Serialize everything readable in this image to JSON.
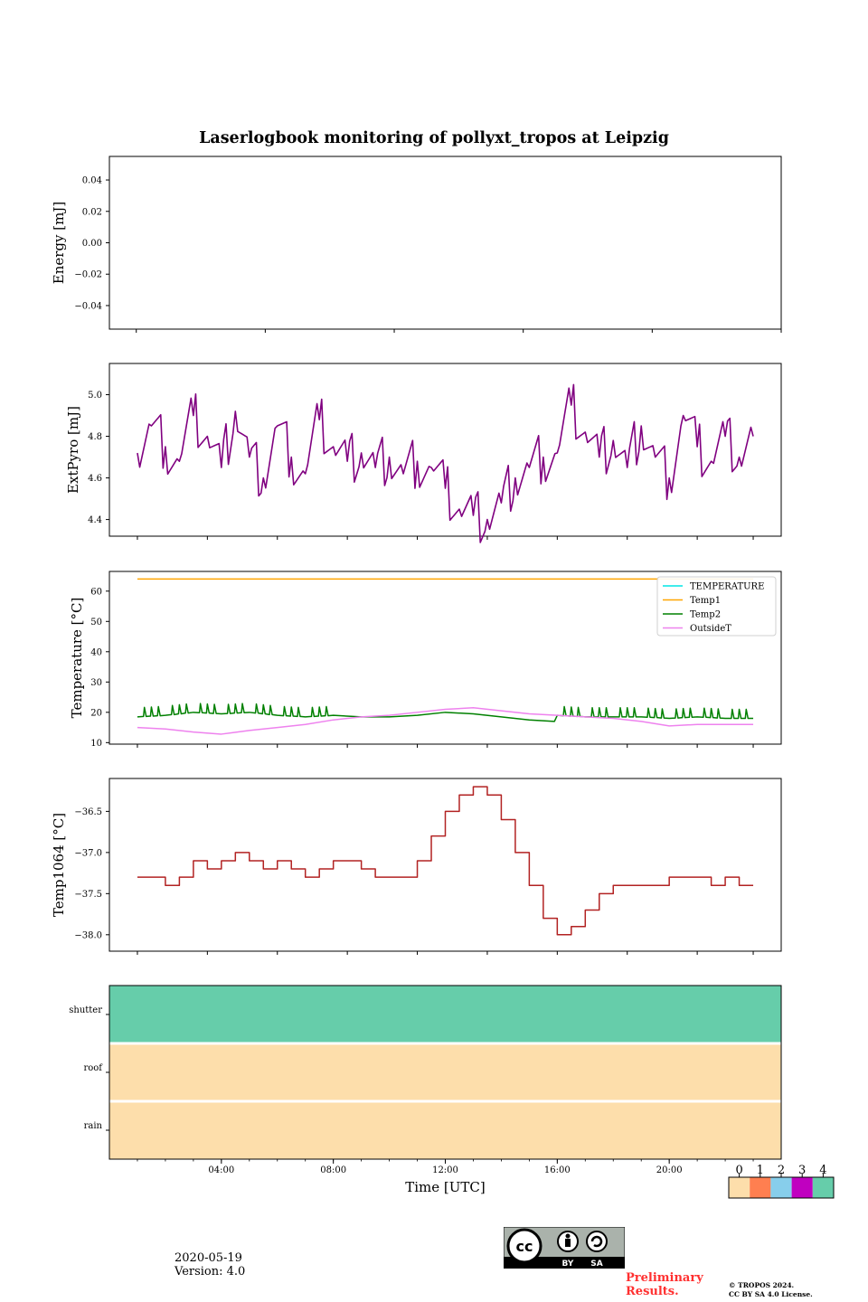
{
  "title": "Laserlogbook monitoring of pollyxt_tropos at Leipzig",
  "footer": {
    "date": "2020-05-19",
    "version": "Version: 4.0",
    "preliminary_line1": "Preliminary",
    "preliminary_line2": "Results.",
    "copyright_line1": "© TROPOS 2024.",
    "copyright_line2": "CC BY SA 4.0 License.",
    "cc_badge": {
      "cc": "cc",
      "by": "BY",
      "sa": "SA"
    }
  },
  "chart_data": [
    {
      "type": "line",
      "name": "energy",
      "ylabel": "Energy [mJ]",
      "ylim": [
        -0.055,
        0.055
      ],
      "yticks": [
        0.04,
        0.02,
        0.0,
        -0.02,
        -0.04
      ],
      "ytick_labels": [
        "0.04",
        "0.02",
        "0.00",
        "−0.02",
        "−0.04"
      ],
      "series": []
    },
    {
      "type": "line",
      "name": "extpyro",
      "ylabel": "ExtPyro [mJ]",
      "ylim": [
        4.32,
        5.15
      ],
      "yticks": [
        5.0,
        4.8,
        4.6,
        4.4
      ],
      "ytick_labels": [
        "5.0",
        "4.8",
        "4.6",
        "4.4"
      ],
      "series": [
        {
          "name": "ExtPyro",
          "color": "#800080",
          "x": [
            1.0,
            1.5,
            2.0,
            2.5,
            3.0,
            3.5,
            4.0,
            4.5,
            5.0,
            5.5,
            6.0,
            6.5,
            7.0,
            7.5,
            8.0,
            8.5,
            9.0,
            9.5,
            10.0,
            10.5,
            11.0,
            11.5,
            12.0,
            12.5,
            13.0,
            13.5,
            14.0,
            14.5,
            15.0,
            15.5,
            16.0,
            16.5,
            17.0,
            17.5,
            18.0,
            18.5,
            19.0,
            19.5,
            20.0,
            20.5,
            21.0,
            21.5,
            22.0,
            22.5,
            23.0
          ],
          "y": [
            4.72,
            4.85,
            4.75,
            4.68,
            4.9,
            4.8,
            4.65,
            4.92,
            4.7,
            4.6,
            4.85,
            4.7,
            4.62,
            4.88,
            4.75,
            4.68,
            4.72,
            4.65,
            4.7,
            4.62,
            4.68,
            4.65,
            4.55,
            4.45,
            4.42,
            4.4,
            4.48,
            4.6,
            4.65,
            4.7,
            4.72,
            4.95,
            4.82,
            4.7,
            4.78,
            4.65,
            4.85,
            4.7,
            4.6,
            4.9,
            4.75,
            4.68,
            4.8,
            4.7,
            4.8
          ]
        }
      ]
    },
    {
      "type": "line",
      "name": "temperature",
      "ylabel": "Temperature [°C]",
      "ylim": [
        9.5,
        66.5
      ],
      "yticks": [
        60,
        50,
        40,
        30,
        20,
        10
      ],
      "ytick_labels": [
        "60",
        "50",
        "40",
        "30",
        "20",
        "10"
      ],
      "legend": [
        "TEMPERATURE",
        "Temp1",
        "Temp2",
        "OutsideT"
      ],
      "series": [
        {
          "name": "TEMPERATURE",
          "color": "#00e5e5",
          "x": [],
          "y": []
        },
        {
          "name": "Temp1",
          "color": "#ffa500",
          "x": [
            1.0,
            23.0
          ],
          "y": [
            64,
            64
          ]
        },
        {
          "name": "Temp2",
          "color": "#008000",
          "x": [
            1.0,
            2.0,
            3.0,
            4.0,
            5.0,
            6.0,
            7.0,
            8.0,
            9.0,
            10.0,
            11.0,
            12.0,
            13.0,
            14.0,
            15.0,
            15.9,
            16.0,
            17.0,
            18.0,
            19.0,
            20.0,
            21.0,
            22.0,
            23.0
          ],
          "y": [
            18.5,
            19.0,
            20.0,
            19.5,
            20.0,
            19.0,
            18.5,
            19.0,
            18.5,
            18.5,
            19.0,
            20.0,
            19.5,
            18.5,
            17.5,
            17.0,
            19.0,
            18.5,
            18.5,
            18.5,
            18.0,
            18.5,
            18.0,
            18.0
          ]
        },
        {
          "name": "OutsideT",
          "color": "#ee82ee",
          "x": [
            1.0,
            2.0,
            3.0,
            4.0,
            5.0,
            6.0,
            7.0,
            8.0,
            9.0,
            10.0,
            11.0,
            12.0,
            13.0,
            14.0,
            15.0,
            16.0,
            17.0,
            18.0,
            19.0,
            20.0,
            21.0,
            22.0,
            23.0
          ],
          "y": [
            15.0,
            14.5,
            13.5,
            12.8,
            14.0,
            15.0,
            16.0,
            17.5,
            18.5,
            19.0,
            20.0,
            21.0,
            21.5,
            20.5,
            19.5,
            19.0,
            18.5,
            18.0,
            17.0,
            15.5,
            16.0,
            16.0,
            16.0
          ]
        }
      ]
    },
    {
      "type": "line",
      "name": "temp1064",
      "ylabel": "Temp1064 [°C]",
      "ylim": [
        -38.2,
        -36.1
      ],
      "yticks": [
        -36.5,
        -37.0,
        -37.5,
        -38.0
      ],
      "ytick_labels": [
        "−36.5",
        "−37.0",
        "−37.5",
        "−38.0"
      ],
      "series": [
        {
          "name": "Temp1064",
          "color": "#b22222",
          "x": [
            1.0,
            1.5,
            2.0,
            2.5,
            3.0,
            3.5,
            4.0,
            4.5,
            5.0,
            5.5,
            6.0,
            6.5,
            7.0,
            7.5,
            8.0,
            8.5,
            9.0,
            9.5,
            10.0,
            10.5,
            11.0,
            11.5,
            12.0,
            12.5,
            13.0,
            13.5,
            14.0,
            14.5,
            15.0,
            15.5,
            16.0,
            16.5,
            17.0,
            17.5,
            18.0,
            18.5,
            19.0,
            19.5,
            20.0,
            20.5,
            21.0,
            21.5,
            22.0,
            22.5,
            23.0
          ],
          "y": [
            -37.3,
            -37.3,
            -37.4,
            -37.3,
            -37.1,
            -37.2,
            -37.1,
            -37.0,
            -37.1,
            -37.2,
            -37.1,
            -37.2,
            -37.3,
            -37.2,
            -37.1,
            -37.1,
            -37.2,
            -37.3,
            -37.3,
            -37.3,
            -37.1,
            -36.8,
            -36.5,
            -36.3,
            -36.2,
            -36.3,
            -36.6,
            -37.0,
            -37.4,
            -37.8,
            -38.0,
            -37.9,
            -37.7,
            -37.5,
            -37.4,
            -37.4,
            -37.4,
            -37.4,
            -37.3,
            -37.3,
            -37.3,
            -37.4,
            -37.3,
            -37.4,
            -37.4
          ]
        }
      ]
    },
    {
      "type": "heatmap",
      "name": "status",
      "xlabel": "Time [UTC]",
      "rows": [
        "shutter",
        "roof",
        "rain"
      ],
      "row_values": [
        4,
        0,
        0
      ],
      "xlim": [
        0,
        24
      ],
      "xticks": [
        4,
        8,
        12,
        16,
        20
      ],
      "xtick_labels": [
        "04:00",
        "08:00",
        "12:00",
        "16:00",
        "20:00"
      ],
      "colorbar": {
        "labels": [
          "0",
          "1",
          "2",
          "3",
          "4"
        ],
        "colors": [
          "#fddeab",
          "#ff7f50",
          "#87ceeb",
          "#c000c0",
          "#66cdaa"
        ]
      }
    }
  ]
}
